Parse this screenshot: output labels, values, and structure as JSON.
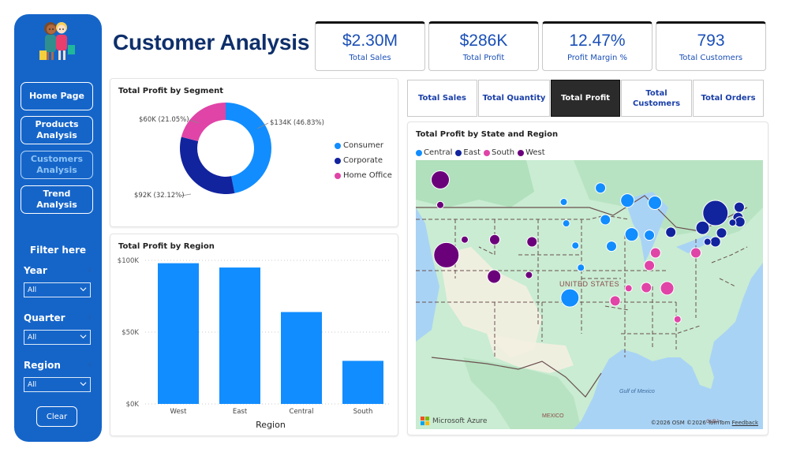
{
  "title": "Customer Analysis",
  "sidebar": {
    "nav": [
      {
        "label": "Home Page",
        "active": false
      },
      {
        "label": "Products Analysis",
        "active": false
      },
      {
        "label": "Customers Analysis",
        "active": true
      },
      {
        "label": "Trend Analysis",
        "active": false
      }
    ],
    "filter_title": "Filter here",
    "filters": [
      {
        "label": "Year",
        "value": "All"
      },
      {
        "label": "Quarter",
        "value": "All"
      },
      {
        "label": "Region",
        "value": "All"
      }
    ],
    "clear_label": "Clear"
  },
  "kpis": [
    {
      "value": "$2.30M",
      "label": "Total Sales"
    },
    {
      "value": "$286K",
      "label": "Total Profit"
    },
    {
      "value": "12.47%",
      "label": "Profit Margin %"
    },
    {
      "value": "793",
      "label": "Total Customers"
    }
  ],
  "tabs": [
    {
      "label": "Total Sales",
      "active": false
    },
    {
      "label": "Total Quantity",
      "active": false
    },
    {
      "label": "Total Profit",
      "active": true
    },
    {
      "label": "Total Customers",
      "active": false
    },
    {
      "label": "Total Orders",
      "active": false
    }
  ],
  "colors": {
    "central": "#118dff",
    "east": "#12239e",
    "south": "#e044a7",
    "west": "#6b007b",
    "sidebar": "#1565c9",
    "title": "#0e2f6b",
    "kpi_text": "#1a4fb7"
  },
  "map": {
    "title": "Total Profit by State and Region",
    "legend": [
      "Central",
      "East",
      "South",
      "West"
    ],
    "labels": {
      "country": "UNITED STATES",
      "gulf": "Gulf of Mexico",
      "mexico": "MEXICO",
      "cuba": "CUBA"
    },
    "brand": "Microsoft Azure",
    "credits": "©2026 OSM  ©2026 TomTom",
    "feedback": "Feedback"
  },
  "chart_data": [
    {
      "type": "pie",
      "title": "Total Profit by Segment",
      "donut": true,
      "categories": [
        "Consumer",
        "Corporate",
        "Home Office"
      ],
      "values": [
        134,
        92,
        60
      ],
      "percents": [
        46.83,
        32.12,
        21.05
      ],
      "data_labels": [
        "$134K (46.83%)",
        "$92K (32.12%)",
        "$60K (21.05%)"
      ],
      "legend": "right"
    },
    {
      "type": "bar",
      "title": "Total Profit by Region",
      "categories": [
        "West",
        "East",
        "Central",
        "South"
      ],
      "values": [
        98,
        95,
        64,
        30
      ],
      "units": "$K",
      "xlabel": "Region",
      "ylabel": "",
      "ylim": [
        0,
        100
      ],
      "yticks": [
        "$0K",
        "$50K",
        "$100K"
      ],
      "grid": true
    },
    {
      "type": "scatter",
      "title": "Total Profit by State and Region",
      "note": "bubble map; relative bubble sizes 1-5",
      "points": [
        {
          "region": "West",
          "lon": -120.5,
          "lat": 47.4,
          "size": 4
        },
        {
          "region": "West",
          "lon": -120.5,
          "lat": 44.0,
          "size": 1
        },
        {
          "region": "West",
          "lon": -119.5,
          "lat": 37.2,
          "size": 5
        },
        {
          "region": "West",
          "lon": -116.5,
          "lat": 39.3,
          "size": 1
        },
        {
          "region": "West",
          "lon": -111.6,
          "lat": 39.3,
          "size": 2
        },
        {
          "region": "West",
          "lon": -111.7,
          "lat": 34.3,
          "size": 3
        },
        {
          "region": "West",
          "lon": -106.0,
          "lat": 34.5,
          "size": 1
        },
        {
          "region": "West",
          "lon": -105.5,
          "lat": 39.0,
          "size": 2
        },
        {
          "region": "Central",
          "lon": -94.3,
          "lat": 46.3,
          "size": 2
        },
        {
          "region": "Central",
          "lon": -89.9,
          "lat": 44.6,
          "size": 3
        },
        {
          "region": "Central",
          "lon": -85.4,
          "lat": 44.3,
          "size": 3
        },
        {
          "region": "Central",
          "lon": -100.3,
          "lat": 44.4,
          "size": 1
        },
        {
          "region": "Central",
          "lon": -99.9,
          "lat": 41.5,
          "size": 1
        },
        {
          "region": "Central",
          "lon": -93.5,
          "lat": 42.0,
          "size": 2
        },
        {
          "region": "Central",
          "lon": -89.2,
          "lat": 40.0,
          "size": 3
        },
        {
          "region": "Central",
          "lon": -86.3,
          "lat": 39.9,
          "size": 2
        },
        {
          "region": "Central",
          "lon": -98.4,
          "lat": 38.5,
          "size": 1
        },
        {
          "region": "Central",
          "lon": -92.5,
          "lat": 38.4,
          "size": 2
        },
        {
          "region": "Central",
          "lon": -97.5,
          "lat": 35.5,
          "size": 1
        },
        {
          "region": "Central",
          "lon": -99.3,
          "lat": 31.4,
          "size": 4
        },
        {
          "region": "East",
          "lon": -75.5,
          "lat": 42.9,
          "size": 5
        },
        {
          "region": "East",
          "lon": -71.6,
          "lat": 43.7,
          "size": 2
        },
        {
          "region": "East",
          "lon": -71.8,
          "lat": 42.3,
          "size": 2
        },
        {
          "region": "East",
          "lon": -71.5,
          "lat": 41.7,
          "size": 2
        },
        {
          "region": "East",
          "lon": -72.7,
          "lat": 41.6,
          "size": 1
        },
        {
          "region": "East",
          "lon": -82.8,
          "lat": 40.3,
          "size": 2
        },
        {
          "region": "East",
          "lon": -77.6,
          "lat": 40.9,
          "size": 3
        },
        {
          "region": "East",
          "lon": -74.5,
          "lat": 40.2,
          "size": 2
        },
        {
          "region": "East",
          "lon": -75.5,
          "lat": 39.0,
          "size": 2
        },
        {
          "region": "East",
          "lon": -76.8,
          "lat": 39.0,
          "size": 1
        },
        {
          "region": "South",
          "lon": -85.3,
          "lat": 37.5,
          "size": 2
        },
        {
          "region": "South",
          "lon": -78.7,
          "lat": 37.5,
          "size": 2
        },
        {
          "region": "South",
          "lon": -86.3,
          "lat": 35.8,
          "size": 2
        },
        {
          "region": "South",
          "lon": -89.7,
          "lat": 32.7,
          "size": 1
        },
        {
          "region": "South",
          "lon": -86.8,
          "lat": 32.8,
          "size": 2
        },
        {
          "region": "South",
          "lon": -83.4,
          "lat": 32.7,
          "size": 3
        },
        {
          "region": "South",
          "lon": -91.9,
          "lat": 31.0,
          "size": 2
        },
        {
          "region": "South",
          "lon": -81.7,
          "lat": 28.5,
          "size": 1
        }
      ]
    }
  ]
}
